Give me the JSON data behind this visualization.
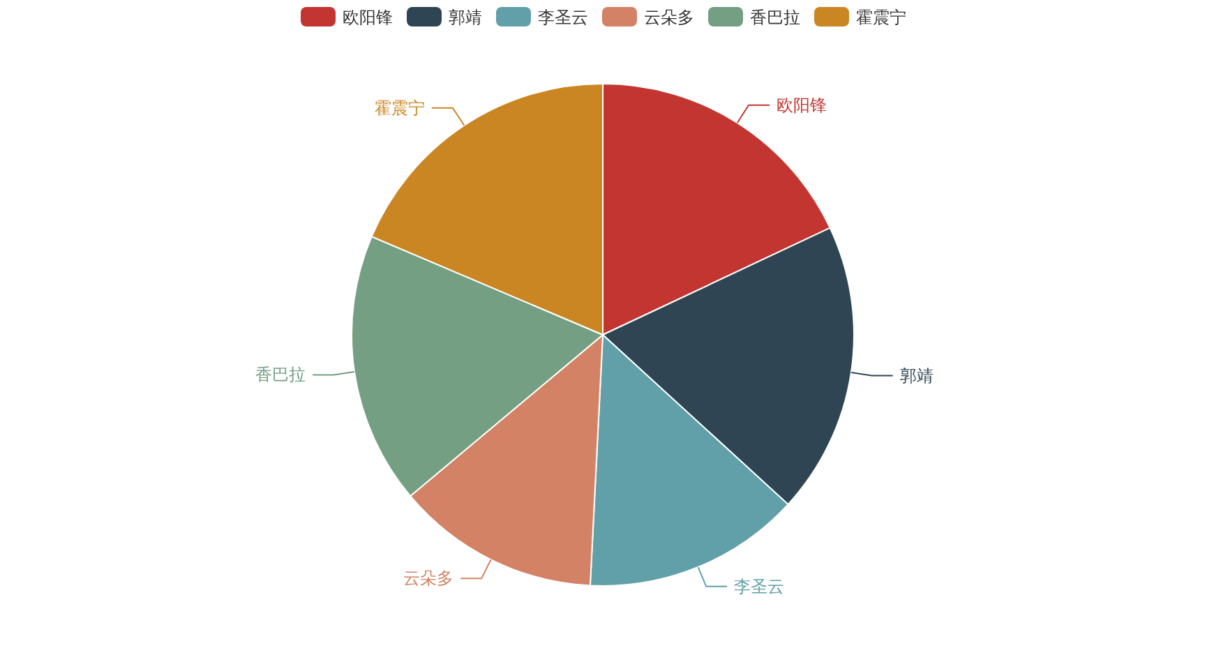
{
  "chart_data": {
    "type": "pie",
    "categories": [
      "欧阳锋",
      "郭靖",
      "李圣云",
      "云朵多",
      "香巴拉",
      "霍震宁"
    ],
    "values": [
      18.0,
      18.8,
      14.0,
      13.1,
      17.5,
      18.6
    ],
    "colors": [
      "#c23531",
      "#2f4554",
      "#61a0a8",
      "#d48265",
      "#749f82",
      "#ca8622"
    ],
    "legend": "top"
  }
}
